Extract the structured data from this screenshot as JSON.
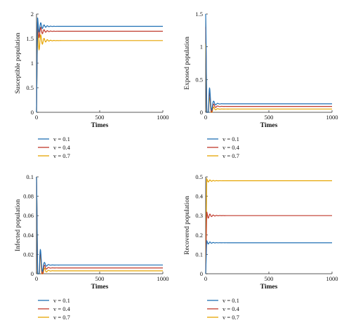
{
  "colors": {
    "v01": "#1f6fb4",
    "v04": "#c0392b",
    "v07": "#e6a400"
  },
  "chart_data": [
    {
      "type": "line",
      "xlabel": "Times",
      "ylabel": "Susceptible population",
      "xlim": [
        0,
        1000
      ],
      "ylim": [
        0,
        2
      ],
      "xticks": [
        "0",
        "500",
        "1000"
      ],
      "yticks": [
        "0",
        "0.5",
        "1",
        "1.5",
        "2"
      ],
      "legend": [
        "v = 0.1",
        "v = 0.4",
        "v = 0.7"
      ],
      "series": [
        {
          "name": "v = 0.1",
          "values_note": "oscillates then settles",
          "start": 0,
          "peak": 1.93,
          "steady": 1.75
        },
        {
          "name": "v = 0.4",
          "start": 0,
          "peak": 1.85,
          "steady": 1.65
        },
        {
          "name": "v = 0.7",
          "start": 0,
          "peak": 1.75,
          "steady": 1.46
        }
      ]
    },
    {
      "type": "line",
      "xlabel": "Times",
      "ylabel": "Exposed population",
      "xlim": [
        0,
        1000
      ],
      "ylim": [
        0,
        1.5
      ],
      "xticks": [
        "0",
        "500",
        "1000"
      ],
      "yticks": [
        "0",
        "0.5",
        "1",
        "1.5"
      ],
      "legend": [
        "v = 0.1",
        "v = 0.4",
        "v = 0.7"
      ],
      "series": [
        {
          "name": "v = 0.1",
          "start": 1.5,
          "peak": 1.5,
          "steady": 0.13
        },
        {
          "name": "v = 0.4",
          "start": 1.3,
          "peak": 1.3,
          "steady": 0.09
        },
        {
          "name": "v = 0.7",
          "start": 1.05,
          "peak": 1.05,
          "steady": 0.05
        }
      ]
    },
    {
      "type": "line",
      "xlabel": "Times",
      "ylabel": "Infected population",
      "xlim": [
        0,
        1000
      ],
      "ylim": [
        0,
        0.1
      ],
      "xticks": [
        "0",
        "500",
        "1000"
      ],
      "yticks": [
        "0",
        "0.02",
        "0.04",
        "0.06",
        "0.08",
        "0.1"
      ],
      "legend": [
        "v = 0.1",
        "v = 0.4",
        "v = 0.7"
      ],
      "series": [
        {
          "name": "v = 0.1",
          "start": 0.1,
          "peak": 0.033,
          "steady": 0.009
        },
        {
          "name": "v = 0.4",
          "start": 0.1,
          "peak": 0.027,
          "steady": 0.006
        },
        {
          "name": "v = 0.7",
          "start": 0.1,
          "peak": 0.022,
          "steady": 0.003
        }
      ]
    },
    {
      "type": "line",
      "xlabel": "Times",
      "ylabel": "Recovered population",
      "xlim": [
        0,
        1000
      ],
      "ylim": [
        0,
        0.5
      ],
      "xticks": [
        "0",
        "500",
        "1000"
      ],
      "yticks": [
        "0",
        "0.1",
        "0.2",
        "0.3",
        "0.4",
        "0.5"
      ],
      "legend": [
        "v = 0.1",
        "v = 0.4",
        "v = 0.7"
      ],
      "series": [
        {
          "name": "v = 0.1",
          "start": 0,
          "peak": 0.17,
          "steady": 0.16
        },
        {
          "name": "v = 0.4",
          "start": 0,
          "peak": 0.32,
          "steady": 0.3
        },
        {
          "name": "v = 0.7",
          "start": 0,
          "peak": 0.49,
          "steady": 0.48
        }
      ]
    }
  ]
}
